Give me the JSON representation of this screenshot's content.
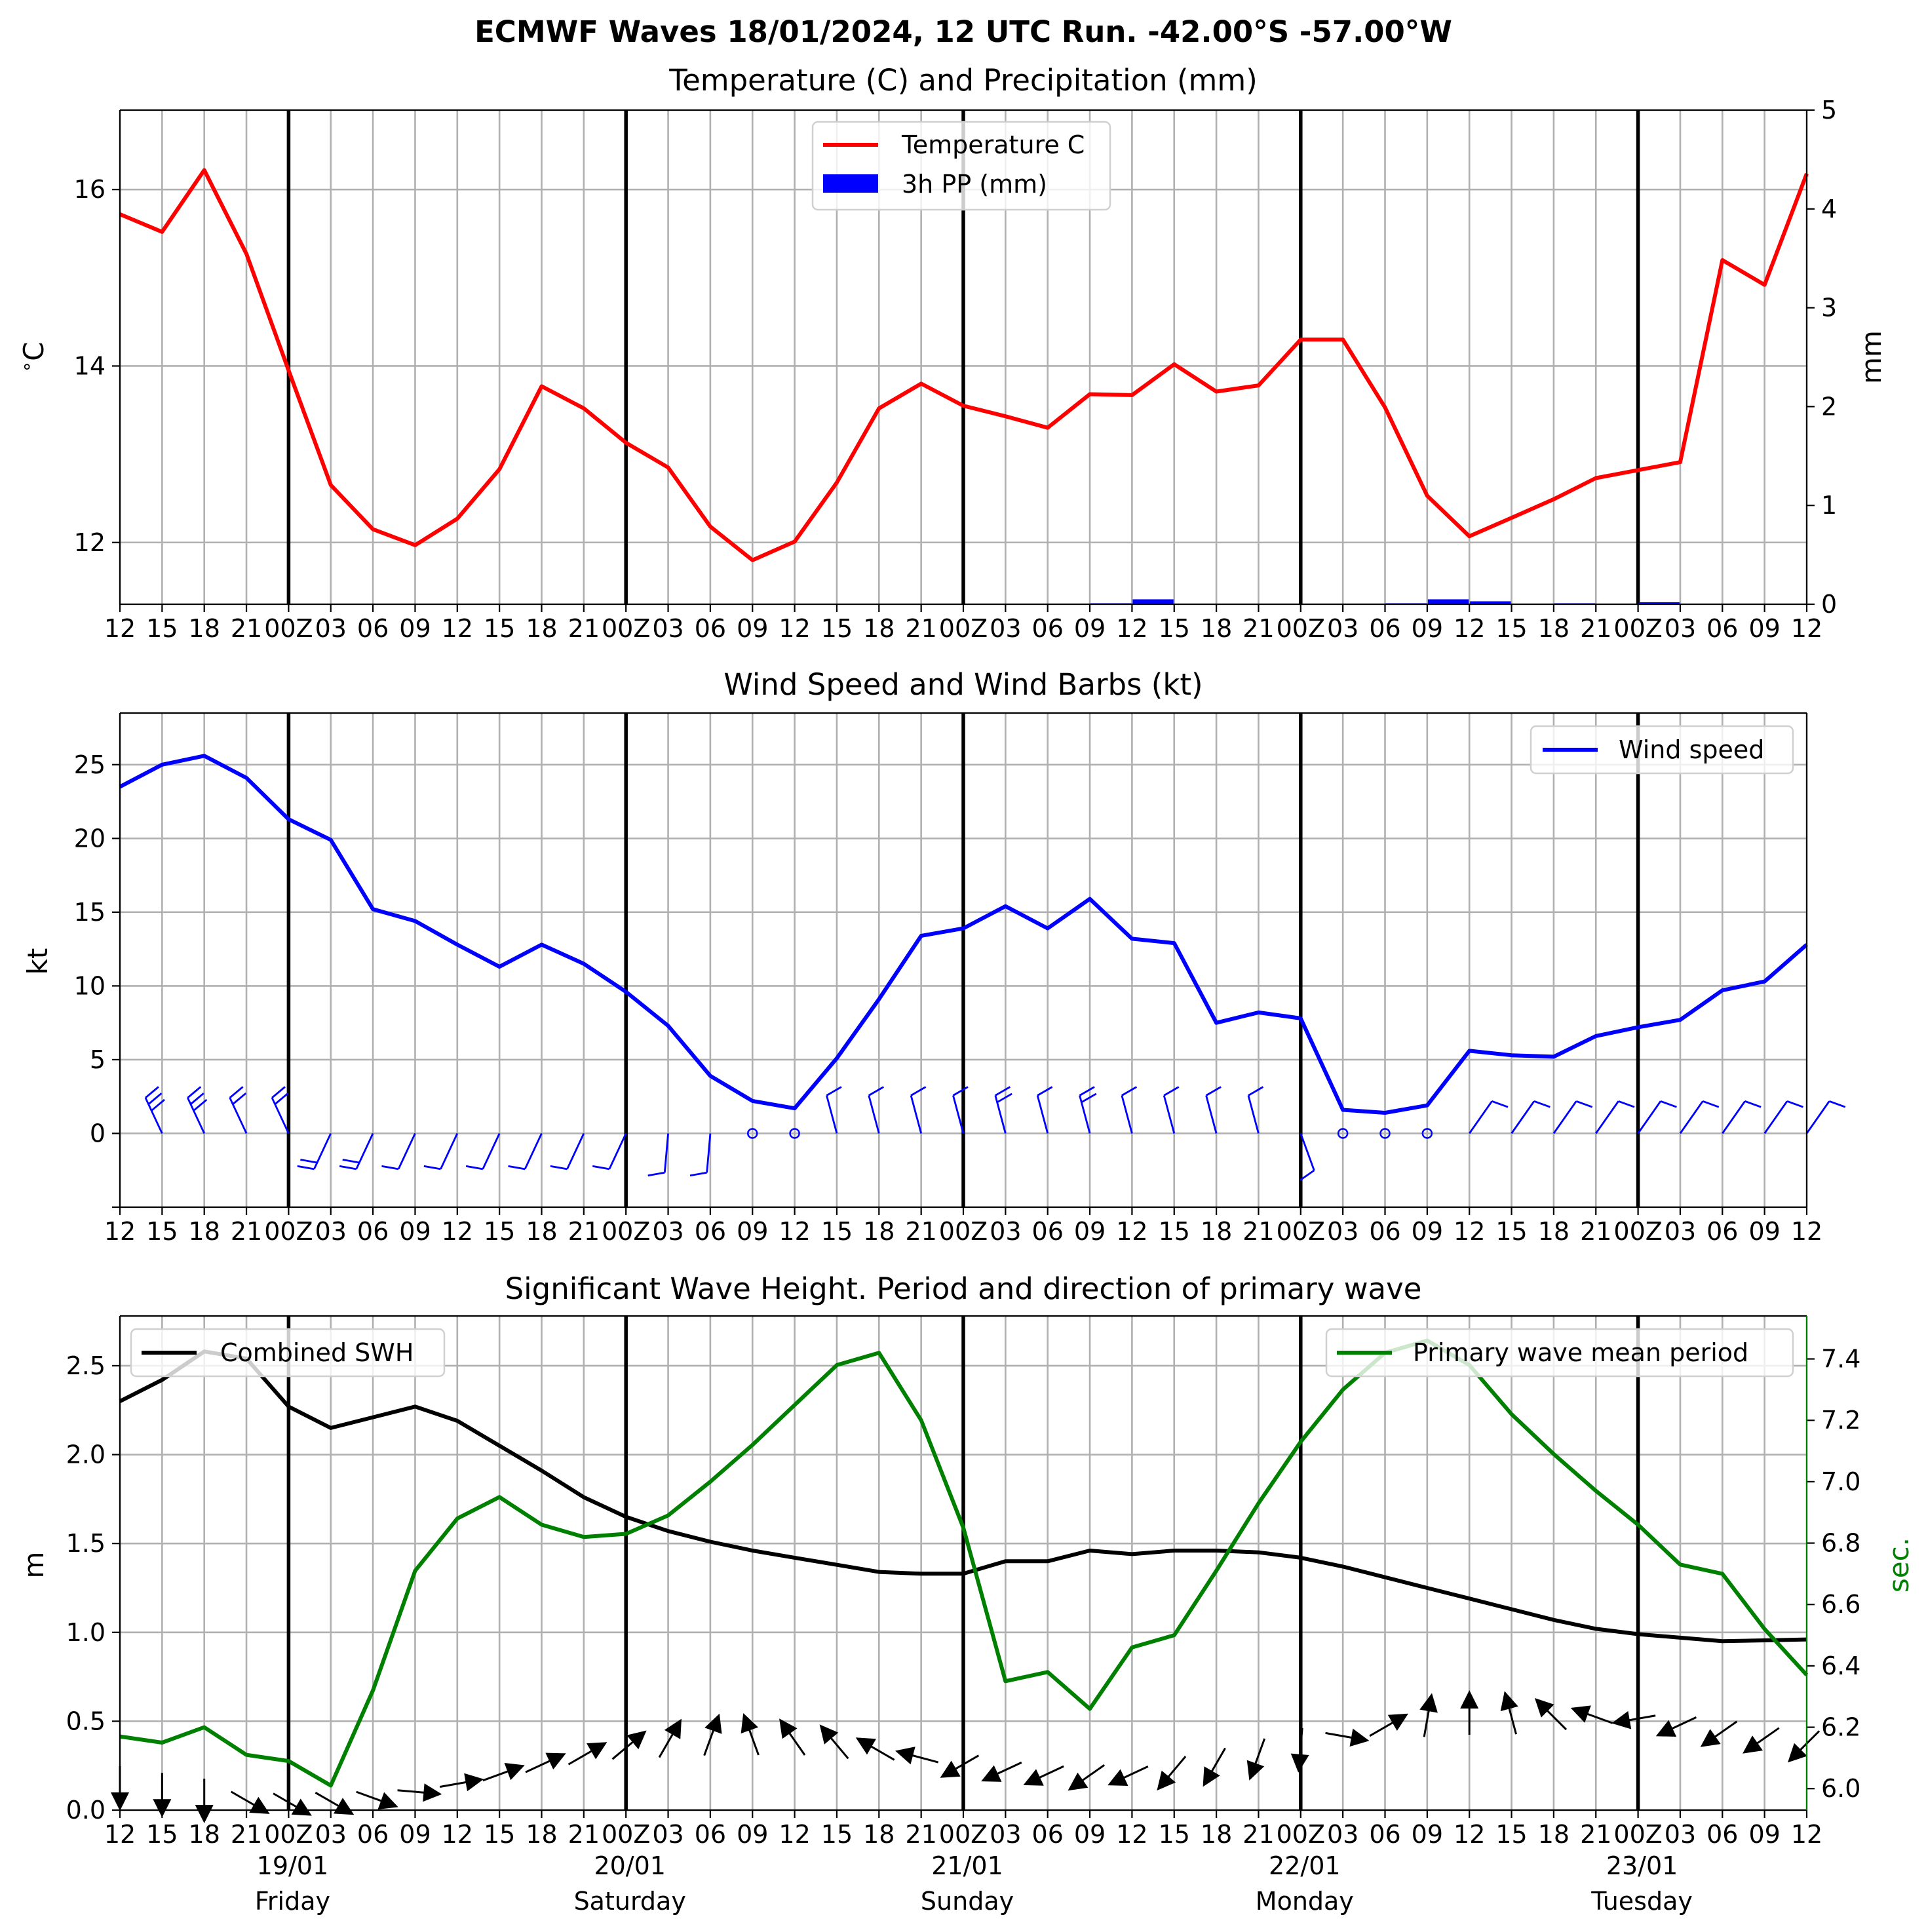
{
  "suptitle": "ECMWF Waves 18/01/2024, 12 UTC Run. -42.00°S -57.00°W",
  "x_tick_labels": [
    "12",
    "15",
    "18",
    "21",
    "00Z",
    "03",
    "06",
    "09",
    "12",
    "15",
    "18",
    "21",
    "00Z",
    "03",
    "06",
    "09",
    "12",
    "15",
    "18",
    "21",
    "00Z",
    "03",
    "06",
    "09",
    "12",
    "15",
    "18",
    "21",
    "00Z",
    "03",
    "06",
    "09",
    "12",
    "15",
    "18",
    "21",
    "00Z",
    "03",
    "06",
    "09",
    "12"
  ],
  "day_labels": [
    {
      "date": "19/01",
      "day": "Friday",
      "tick": 4
    },
    {
      "date": "20/01",
      "day": "Saturday",
      "tick": 12
    },
    {
      "date": "21/01",
      "day": "Sunday",
      "tick": 20
    },
    {
      "date": "22/01",
      "day": "Monday",
      "tick": 28
    },
    {
      "date": "23/01",
      "day": "Tuesday",
      "tick": 36
    }
  ],
  "panels": {
    "temp": {
      "title": "Temperature (C) and Precipitation (mm)",
      "ylabel_left": "$^\\circ$C",
      "ylabel_right": "mm",
      "legend": [
        "Temperature C",
        "3h PP (mm)"
      ]
    },
    "wind": {
      "title": "Wind Speed and Wind Barbs (kt)",
      "ylabel": "kt",
      "legend": [
        "Wind speed"
      ]
    },
    "wave": {
      "title": "Significant Wave Height. Period and direction of primary wave",
      "ylabel_left": "m",
      "ylabel_right": "sec.",
      "legend_left": "Combined SWH",
      "legend_right": "Primary wave mean period"
    }
  },
  "colors": {
    "temp": "#ff0000",
    "precip": "#0000ff",
    "wind": "#0000ff",
    "swh": "#000000",
    "period": "#008000",
    "grid": "#b0b0b0"
  },
  "chart_data": [
    {
      "type": "line",
      "title": "Temperature (C) and Precipitation (mm)",
      "ylabel": "°C",
      "y2label": "mm",
      "ylim": [
        11.3,
        16.9
      ],
      "y2lim": [
        0,
        5
      ],
      "yticks": [
        12,
        14,
        16
      ],
      "y2ticks": [
        0,
        1,
        2,
        3,
        4,
        5
      ],
      "series": [
        {
          "name": "Temperature C",
          "axis": "left",
          "values": [
            15.72,
            15.52,
            16.22,
            15.27,
            13.95,
            12.65,
            12.15,
            11.97,
            12.27,
            12.83,
            13.77,
            13.52,
            13.13,
            12.85,
            12.18,
            11.8,
            12.01,
            12.68,
            13.52,
            13.8,
            13.55,
            13.43,
            13.3,
            13.68,
            13.67,
            14.02,
            13.71,
            13.78,
            14.3,
            14.3,
            13.53,
            12.53,
            12.07,
            12.28,
            12.49,
            12.73,
            12.82,
            12.91,
            15.2,
            14.92,
            16.18
          ]
        },
        {
          "name": "3h PP (mm)",
          "axis": "right",
          "kind": "bar",
          "values": [
            0,
            0,
            0,
            0,
            0,
            0,
            0,
            0,
            0,
            0,
            0,
            0,
            0,
            0,
            0,
            0,
            0,
            0,
            0,
            0,
            0,
            0,
            0,
            0.01,
            0.05,
            0,
            0,
            0,
            0,
            0,
            0.01,
            0.05,
            0.03,
            0,
            0.01,
            0,
            0.02,
            0,
            0,
            0,
            0
          ]
        }
      ]
    },
    {
      "type": "line",
      "title": "Wind Speed and Wind Barbs (kt)",
      "ylabel": "kt",
      "ylim": [
        -5,
        28.5
      ],
      "yticks": [
        0,
        5,
        10,
        15,
        20,
        25
      ],
      "series": [
        {
          "name": "Wind speed",
          "values": [
            23.5,
            25,
            25.6,
            24.1,
            21.3,
            19.9,
            15.2,
            14.4,
            12.8,
            11.3,
            12.8,
            11.5,
            9.6,
            7.3,
            3.9,
            2.2,
            1.7,
            5.1,
            9.1,
            13.4,
            13.9,
            15.4,
            13.9,
            15.9,
            13.2,
            12.9,
            7.5,
            8.2,
            7.8,
            1.6,
            1.4,
            1.9,
            5.6,
            5.3,
            5.2,
            6.6,
            7.2,
            7.7,
            9.7,
            10.3,
            12.8
          ]
        }
      ]
    },
    {
      "type": "line",
      "title": "Significant Wave Height. Period and direction of primary wave",
      "ylabel": "m",
      "y2label": "sec.",
      "ylim": [
        0,
        2.78
      ],
      "y2lim": [
        5.93,
        7.54
      ],
      "yticks": [
        0.0,
        0.5,
        1.0,
        1.5,
        2.0,
        2.5
      ],
      "y2ticks": [
        6.0,
        6.2,
        6.4,
        6.6,
        6.8,
        7.0,
        7.2,
        7.4
      ],
      "series": [
        {
          "name": "Combined SWH",
          "axis": "left",
          "values": [
            2.3,
            2.42,
            2.58,
            2.54,
            2.27,
            2.15,
            2.21,
            2.27,
            2.19,
            2.05,
            1.91,
            1.76,
            1.65,
            1.57,
            1.51,
            1.46,
            1.42,
            1.38,
            1.34,
            1.33,
            1.33,
            1.4,
            1.4,
            1.46,
            1.44,
            1.46,
            1.46,
            1.45,
            1.42,
            1.37,
            1.31,
            1.25,
            1.19,
            1.13,
            1.07,
            1.02,
            0.99,
            0.97,
            0.95,
            0.955,
            0.96
          ]
        },
        {
          "name": "Primary wave mean period",
          "axis": "right",
          "values": [
            6.17,
            6.15,
            6.2,
            6.11,
            6.09,
            6.01,
            6.32,
            6.71,
            6.88,
            6.95,
            6.86,
            6.82,
            6.83,
            6.89,
            7,
            7.12,
            7.25,
            7.38,
            7.42,
            7.2,
            6.85,
            6.35,
            6.38,
            6.26,
            6.46,
            6.5,
            6.71,
            6.93,
            7.13,
            7.3,
            7.42,
            7.46,
            7.38,
            7.22,
            7.09,
            6.97,
            6.86,
            6.73,
            6.7,
            6.52,
            6.37
          ]
        },
        {
          "name": "Primary wave direction (deg, from)",
          "axis": "arrows",
          "values": [
            0,
            0,
            0,
            300,
            300,
            300,
            290,
            275,
            260,
            250,
            245,
            240,
            230,
            210,
            200,
            160,
            145,
            140,
            120,
            105,
            60,
            65,
            65,
            55,
            65,
            40,
            30,
            20,
            5,
            280,
            240,
            190,
            180,
            165,
            135,
            110,
            80,
            65,
            55,
            55,
            45
          ]
        }
      ]
    }
  ]
}
